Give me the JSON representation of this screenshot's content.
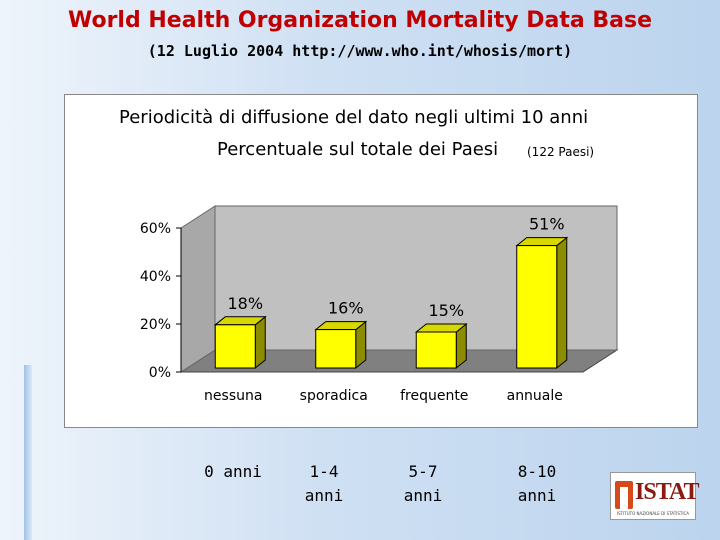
{
  "slide": {
    "title": "World Health Organization Mortality Data Base",
    "subtitle": "(12 Luglio 2004 http://www.who.int/whosis/mort)"
  },
  "chart_data": {
    "type": "bar",
    "title": "Periodicità di diffusione del dato negli ultimi 10 anni",
    "subtitle": "Percentuale sul totale dei Paesi",
    "note": "(122 Paesi)",
    "categories": [
      "nessuna",
      "sporadica",
      "frequente",
      "annuale"
    ],
    "values": [
      18,
      16,
      15,
      51
    ],
    "data_labels": [
      "18%",
      "16%",
      "15%",
      "51%"
    ],
    "y_ticks": [
      "0%",
      "20%",
      "40%",
      "60%"
    ],
    "ylim": [
      0,
      60
    ],
    "bar_color": "#ffff00",
    "bar_side_color": "#8c8c00",
    "wall_color": "#c0c0c0",
    "floor_color": "#808080",
    "grid": false,
    "legend": "none"
  },
  "period_labels": [
    {
      "line1": "0 anni",
      "line2": ""
    },
    {
      "line1": "1-4",
      "line2": "anni"
    },
    {
      "line1": "5-7",
      "line2": "anni"
    },
    {
      "line1": "8-10",
      "line2": "anni"
    }
  ],
  "logo": {
    "name": "ISTAT",
    "tagline": "ISTITUTO NAZIONALE DI STATISTICA"
  },
  "colors": {
    "title": "#c00000"
  }
}
